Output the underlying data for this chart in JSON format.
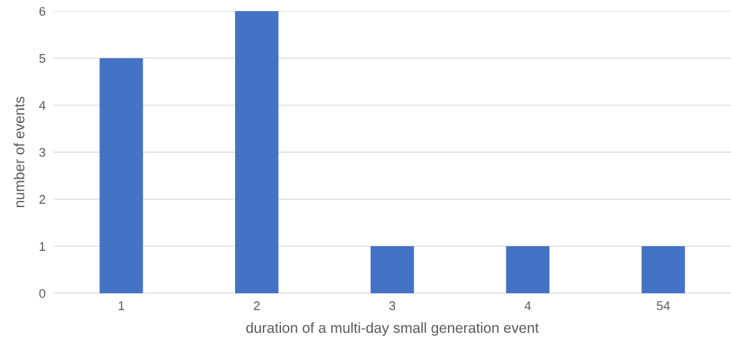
{
  "chart_data": {
    "type": "bar",
    "xlabel": "duration of a multi-day small generation event",
    "ylabel": "number of events",
    "categories": [
      "1",
      "2",
      "3",
      "4",
      "54"
    ],
    "values": [
      5,
      6,
      1,
      1,
      1
    ],
    "color": "#4472c4",
    "ylim": [
      0,
      6
    ],
    "yticks": [
      0,
      1,
      2,
      3,
      4,
      5,
      6
    ],
    "grid": "y",
    "legend": false
  }
}
